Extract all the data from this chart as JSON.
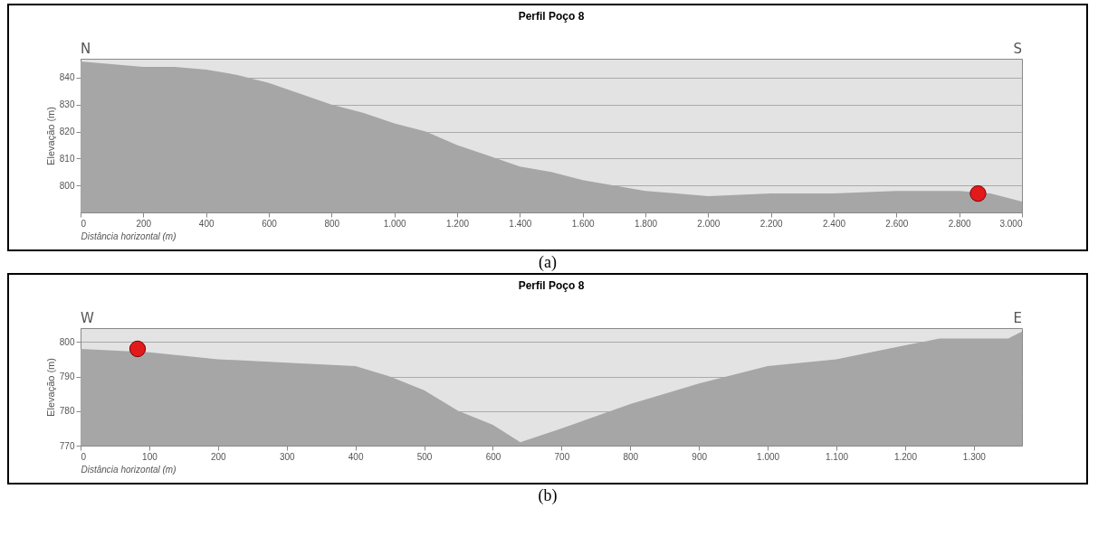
{
  "chart_data": [
    {
      "type": "area",
      "title": "Perfil Poço 8",
      "xlabel": "Distância horizontal (m)",
      "ylabel": "Elevação (m)",
      "annotations": [
        "N",
        "S",
        "(a)"
      ],
      "xlim": [
        0,
        3000
      ],
      "xticks": [
        0,
        200,
        400,
        600,
        800,
        {
          "value": 1000,
          "label": "1.000"
        },
        {
          "value": 1200,
          "label": "1.200"
        },
        {
          "value": 1400,
          "label": "1.400"
        },
        {
          "value": 1600,
          "label": "1.600"
        },
        {
          "value": 1800,
          "label": "1.800"
        },
        {
          "value": 2000,
          "label": "2.000"
        },
        {
          "value": 2200,
          "label": "2.200"
        },
        {
          "value": 2400,
          "label": "2.400"
        },
        {
          "value": 2600,
          "label": "2.600"
        },
        {
          "value": 2800,
          "label": "2.800"
        },
        {
          "value": 3000,
          "label": "3.000"
        }
      ],
      "ylim": [
        790,
        847
      ],
      "yticks": [
        800,
        810,
        820,
        830,
        840
      ],
      "grid": "y",
      "series": [
        {
          "type": "area",
          "color": "#a6a6a6",
          "x": [
            0,
            100,
            200,
            300,
            400,
            500,
            600,
            700,
            800,
            900,
            1000,
            1100,
            1200,
            1300,
            1400,
            1500,
            1600,
            1700,
            1800,
            1900,
            2000,
            2200,
            2400,
            2600,
            2800,
            2900,
            3000
          ],
          "values": [
            846,
            845,
            844,
            844,
            843,
            841,
            838,
            834,
            830,
            827,
            823,
            820,
            815,
            811,
            807,
            805,
            802,
            800,
            798,
            797,
            796,
            797,
            797,
            798,
            798,
            797,
            794
          ]
        },
        {
          "type": "scatter",
          "color": "#e31a1c",
          "marker": "circle",
          "x": [
            2860
          ],
          "values": [
            797
          ]
        }
      ]
    },
    {
      "type": "area",
      "title": "Perfil Poço 8",
      "xlabel": "Distância horizontal (m)",
      "ylabel": "Elevação (m)",
      "annotations": [
        "W",
        "E",
        "(b)"
      ],
      "xlim": [
        0,
        1370
      ],
      "xticks": [
        0,
        100,
        200,
        300,
        400,
        500,
        600,
        700,
        800,
        900,
        {
          "value": 1000,
          "label": "1.000"
        },
        {
          "value": 1100,
          "label": "1.100"
        },
        {
          "value": 1200,
          "label": "1.200"
        },
        {
          "value": 1300,
          "label": "1.300"
        }
      ],
      "ylim": [
        770,
        804
      ],
      "yticks": [
        770,
        780,
        790,
        800
      ],
      "grid": "y",
      "series": [
        {
          "type": "area",
          "color": "#a6a6a6",
          "x": [
            0,
            100,
            200,
            300,
            400,
            450,
            500,
            550,
            600,
            640,
            700,
            800,
            900,
            1000,
            1100,
            1200,
            1250,
            1350,
            1370
          ],
          "values": [
            798,
            797,
            795,
            794,
            793,
            790,
            786,
            780,
            776,
            771,
            775,
            782,
            788,
            793,
            795,
            799,
            801,
            801,
            803
          ]
        },
        {
          "type": "scatter",
          "color": "#e31a1c",
          "marker": "circle",
          "x": [
            83
          ],
          "values": [
            798
          ]
        }
      ]
    }
  ]
}
